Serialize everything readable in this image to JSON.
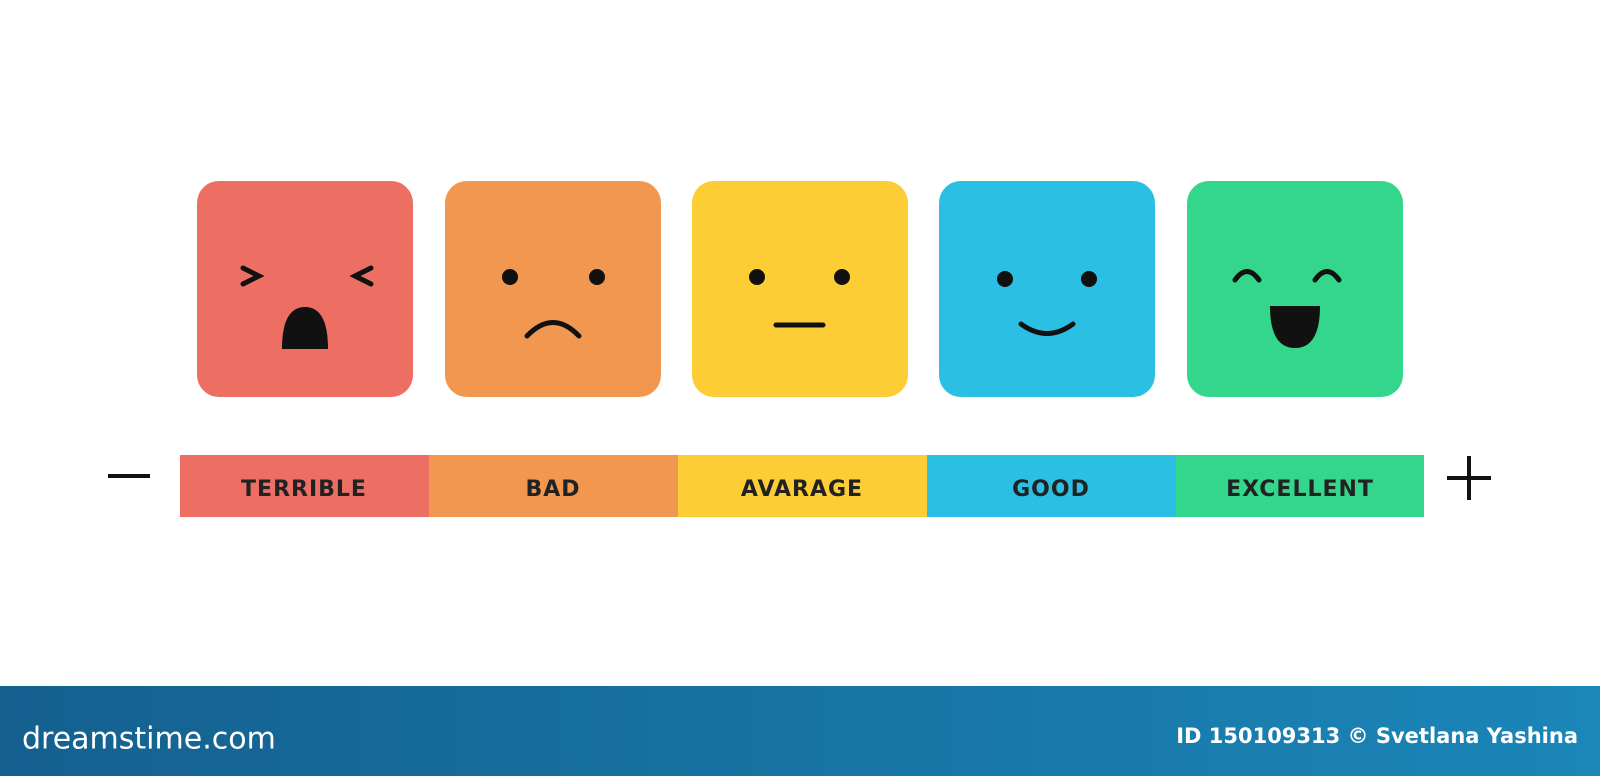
{
  "scale": {
    "ratings": [
      {
        "label": "TERRIBLE"
      },
      {
        "label": "BAD"
      },
      {
        "label": "AVARAGE"
      },
      {
        "label": "GOOD"
      },
      {
        "label": "EXCELLENT"
      }
    ]
  },
  "footer": {
    "brand": "dreamstime.com",
    "credit": "ID 150109313 © Svetlana Yashina"
  }
}
